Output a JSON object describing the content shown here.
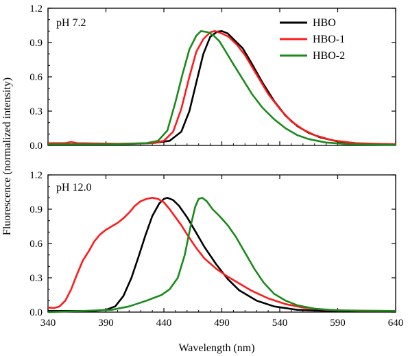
{
  "chart_data": [
    {
      "type": "line",
      "panel_label": "pH 7.2",
      "xlim": [
        340,
        640
      ],
      "ylim": [
        0,
        1.2
      ],
      "x_ticks": [
        "340",
        "390",
        "440",
        "490",
        "540",
        "590",
        "640"
      ],
      "y_ticks": [
        "0.0",
        "0.3",
        "0.6",
        "0.9",
        "1.2"
      ],
      "legend": {
        "placement": "top-right",
        "entries": [
          "HBO",
          "HBO-1",
          "HBO-2"
        ]
      },
      "series": [
        {
          "name": "HBO",
          "color": "#000000",
          "points": [
            [
              340,
              0.01
            ],
            [
              400,
              0.01
            ],
            [
              430,
              0.02
            ],
            [
              445,
              0.04
            ],
            [
              455,
              0.12
            ],
            [
              462,
              0.3
            ],
            [
              468,
              0.55
            ],
            [
              474,
              0.8
            ],
            [
              480,
              0.95
            ],
            [
              486,
              0.995
            ],
            [
              490,
              1.0
            ],
            [
              495,
              0.98
            ],
            [
              500,
              0.93
            ],
            [
              508,
              0.85
            ],
            [
              515,
              0.73
            ],
            [
              525,
              0.55
            ],
            [
              535,
              0.39
            ],
            [
              545,
              0.26
            ],
            [
              555,
              0.17
            ],
            [
              565,
              0.11
            ],
            [
              575,
              0.07
            ],
            [
              590,
              0.035
            ],
            [
              610,
              0.015
            ],
            [
              640,
              0.01
            ]
          ]
        },
        {
          "name": "HBO-1",
          "color": "#ff1a1a",
          "points": [
            [
              340,
              0.02
            ],
            [
              355,
              0.02
            ],
            [
              360,
              0.03
            ],
            [
              365,
              0.02
            ],
            [
              400,
              0.015
            ],
            [
              430,
              0.02
            ],
            [
              440,
              0.04
            ],
            [
              448,
              0.12
            ],
            [
              455,
              0.32
            ],
            [
              462,
              0.6
            ],
            [
              468,
              0.82
            ],
            [
              474,
              0.93
            ],
            [
              480,
              0.99
            ],
            [
              484,
              1.0
            ],
            [
              490,
              0.98
            ],
            [
              496,
              0.95
            ],
            [
              503,
              0.88
            ],
            [
              510,
              0.79
            ],
            [
              520,
              0.62
            ],
            [
              530,
              0.45
            ],
            [
              540,
              0.32
            ],
            [
              550,
              0.21
            ],
            [
              560,
              0.14
            ],
            [
              570,
              0.09
            ],
            [
              585,
              0.045
            ],
            [
              605,
              0.02
            ],
            [
              640,
              0.01
            ]
          ]
        },
        {
          "name": "HBO-2",
          "color": "#1a8a1a",
          "points": [
            [
              340,
              0.01
            ],
            [
              400,
              0.01
            ],
            [
              425,
              0.02
            ],
            [
              435,
              0.04
            ],
            [
              443,
              0.13
            ],
            [
              450,
              0.38
            ],
            [
              456,
              0.62
            ],
            [
              462,
              0.84
            ],
            [
              468,
              0.96
            ],
            [
              472,
              1.0
            ],
            [
              478,
              0.99
            ],
            [
              483,
              0.96
            ],
            [
              488,
              0.91
            ],
            [
              494,
              0.81
            ],
            [
              500,
              0.71
            ],
            [
              508,
              0.58
            ],
            [
              516,
              0.45
            ],
            [
              525,
              0.33
            ],
            [
              535,
              0.23
            ],
            [
              545,
              0.15
            ],
            [
              555,
              0.09
            ],
            [
              565,
              0.055
            ],
            [
              580,
              0.025
            ],
            [
              600,
              0.01
            ],
            [
              640,
              0.005
            ]
          ]
        }
      ]
    },
    {
      "type": "line",
      "panel_label": "pH 12.0",
      "xlim": [
        340,
        640
      ],
      "ylim": [
        0,
        1.2
      ],
      "x_ticks": [
        "340",
        "390",
        "440",
        "490",
        "540",
        "590",
        "640"
      ],
      "y_ticks": [
        "0.0",
        "0.3",
        "0.6",
        "0.9",
        "1.2"
      ],
      "xlabel": "Wavelength (nm)",
      "series": [
        {
          "name": "HBO",
          "color": "#000000",
          "points": [
            [
              340,
              0.01
            ],
            [
              380,
              0.01
            ],
            [
              390,
              0.02
            ],
            [
              398,
              0.05
            ],
            [
              405,
              0.14
            ],
            [
              412,
              0.3
            ],
            [
              418,
              0.48
            ],
            [
              424,
              0.67
            ],
            [
              430,
              0.84
            ],
            [
              436,
              0.95
            ],
            [
              440,
              0.99
            ],
            [
              443,
              1.0
            ],
            [
              448,
              0.98
            ],
            [
              453,
              0.93
            ],
            [
              460,
              0.83
            ],
            [
              467,
              0.71
            ],
            [
              475,
              0.57
            ],
            [
              485,
              0.42
            ],
            [
              495,
              0.29
            ],
            [
              505,
              0.19
            ],
            [
              520,
              0.1
            ],
            [
              535,
              0.05
            ],
            [
              555,
              0.02
            ],
            [
              580,
              0.01
            ],
            [
              640,
              0.005
            ]
          ]
        },
        {
          "name": "HBO-1",
          "color": "#ff1a1a",
          "points": [
            [
              340,
              0.04
            ],
            [
              345,
              0.035
            ],
            [
              350,
              0.05
            ],
            [
              355,
              0.1
            ],
            [
              360,
              0.2
            ],
            [
              365,
              0.33
            ],
            [
              370,
              0.45
            ],
            [
              375,
              0.53
            ],
            [
              380,
              0.62
            ],
            [
              385,
              0.68
            ],
            [
              390,
              0.72
            ],
            [
              395,
              0.75
            ],
            [
              400,
              0.78
            ],
            [
              405,
              0.82
            ],
            [
              410,
              0.87
            ],
            [
              415,
              0.93
            ],
            [
              420,
              0.97
            ],
            [
              425,
              0.99
            ],
            [
              430,
              1.0
            ],
            [
              435,
              0.99
            ],
            [
              440,
              0.96
            ],
            [
              445,
              0.9
            ],
            [
              450,
              0.83
            ],
            [
              455,
              0.76
            ],
            [
              460,
              0.68
            ],
            [
              468,
              0.56
            ],
            [
              475,
              0.47
            ],
            [
              485,
              0.38
            ],
            [
              495,
              0.31
            ],
            [
              505,
              0.25
            ],
            [
              515,
              0.19
            ],
            [
              530,
              0.12
            ],
            [
              545,
              0.07
            ],
            [
              560,
              0.04
            ],
            [
              580,
              0.02
            ],
            [
              610,
              0.01
            ],
            [
              640,
              0.01
            ]
          ]
        },
        {
          "name": "HBO-2",
          "color": "#1a8a1a",
          "points": [
            [
              340,
              0.0
            ],
            [
              370,
              0.01
            ],
            [
              395,
              0.02
            ],
            [
              410,
              0.05
            ],
            [
              425,
              0.1
            ],
            [
              438,
              0.15
            ],
            [
              445,
              0.2
            ],
            [
              452,
              0.3
            ],
            [
              458,
              0.5
            ],
            [
              463,
              0.75
            ],
            [
              467,
              0.92
            ],
            [
              470,
              0.99
            ],
            [
              473,
              1.0
            ],
            [
              477,
              0.97
            ],
            [
              482,
              0.9
            ],
            [
              488,
              0.84
            ],
            [
              495,
              0.76
            ],
            [
              502,
              0.66
            ],
            [
              510,
              0.52
            ],
            [
              518,
              0.38
            ],
            [
              526,
              0.26
            ],
            [
              535,
              0.16
            ],
            [
              545,
              0.1
            ],
            [
              555,
              0.06
            ],
            [
              570,
              0.03
            ],
            [
              590,
              0.015
            ],
            [
              640,
              0.01
            ]
          ]
        }
      ]
    }
  ],
  "shared_ylabel": "Fluorescence (normalized intensity)"
}
